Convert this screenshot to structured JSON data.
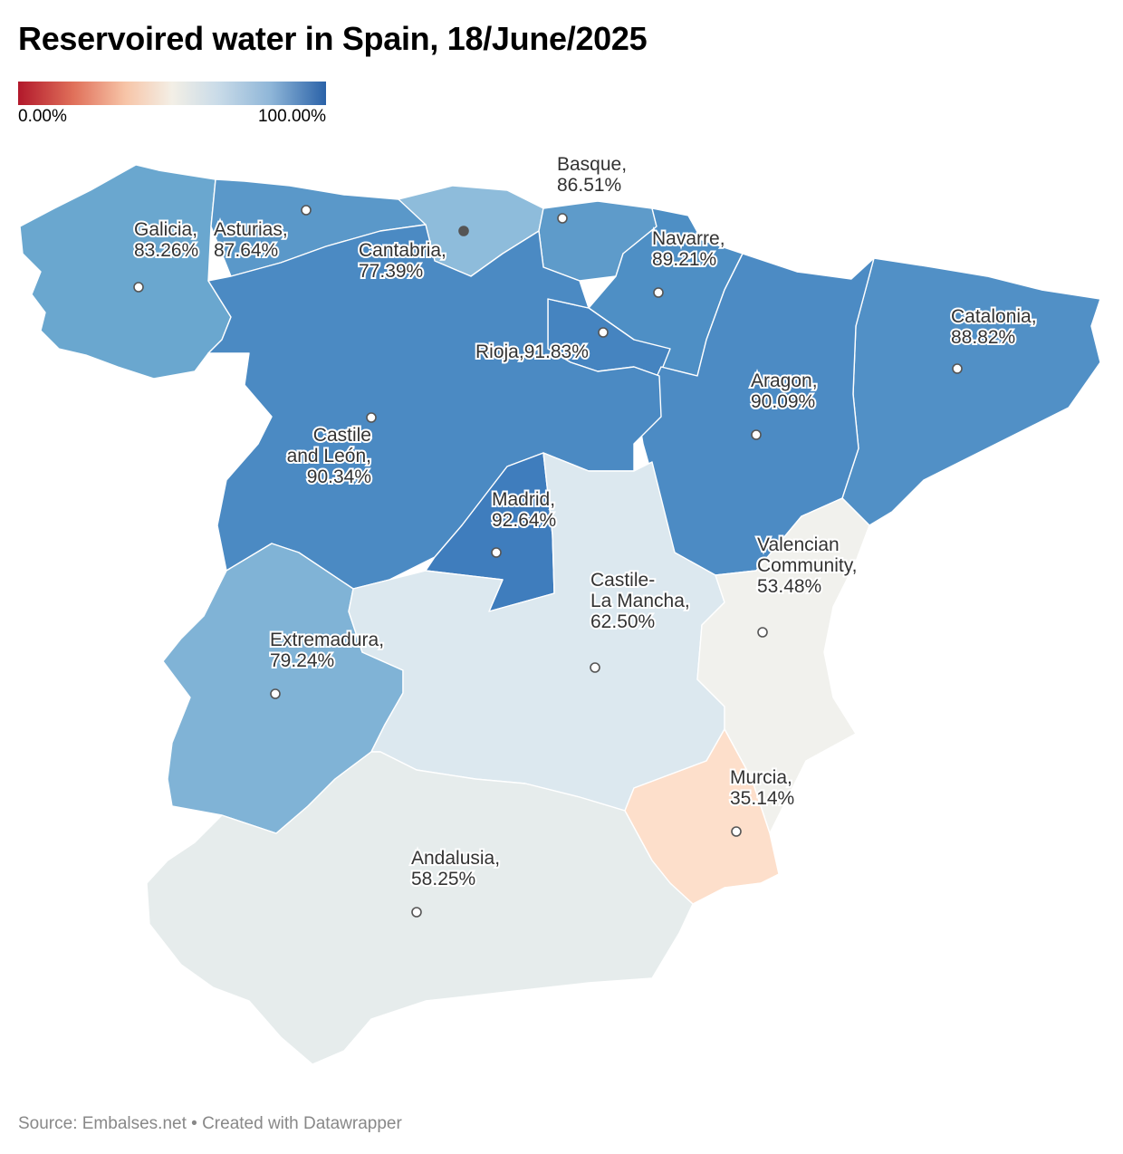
{
  "title": "Reservoired water in Spain, 18/June/2025",
  "legend": {
    "min_label": "0.00%",
    "max_label": "100.00%",
    "colors": [
      "#b2182b",
      "#f3efe6",
      "#2a62a8"
    ]
  },
  "source": "Source: Embalses.net • Created with Datawrapper",
  "regions": [
    {
      "id": "galicia",
      "name": "Galicia",
      "label_lines": [
        "Galicia,",
        "83.26%"
      ],
      "value": 83.26,
      "color": "#6aa7cf"
    },
    {
      "id": "asturias",
      "name": "Asturias",
      "label_lines": [
        "Asturias,",
        "87.64%"
      ],
      "value": 87.64,
      "color": "#5a98c9"
    },
    {
      "id": "cantabria",
      "name": "Cantabria",
      "label_lines": [
        "Cantabria,",
        "77.39%"
      ],
      "value": 77.39,
      "color": "#8ebcdb"
    },
    {
      "id": "basque",
      "name": "Basque",
      "label_lines": [
        "Basque,",
        "86.51%"
      ],
      "value": 86.51,
      "color": "#5e9bca"
    },
    {
      "id": "navarre",
      "name": "Navarre",
      "label_lines": [
        "Navarre,",
        "89.21%"
      ],
      "value": 89.21,
      "color": "#4e8fc5"
    },
    {
      "id": "rioja",
      "name": "Rioja",
      "label_lines": [
        "Rioja,91.83%"
      ],
      "value": 91.83,
      "color": "#4584c0"
    },
    {
      "id": "catalonia",
      "name": "Catalonia",
      "label_lines": [
        "Catalonia,",
        "88.82%"
      ],
      "value": 88.82,
      "color": "#5190c6"
    },
    {
      "id": "aragon",
      "name": "Aragon",
      "label_lines": [
        "Aragon,",
        "90.09%"
      ],
      "value": 90.09,
      "color": "#4c8bc4"
    },
    {
      "id": "castile-leon",
      "name": "Castile and León",
      "label_lines": [
        "Castile",
        "and León,",
        "90.34%"
      ],
      "value": 90.34,
      "color": "#4b8ac3"
    },
    {
      "id": "madrid",
      "name": "Madrid",
      "label_lines": [
        "Madrid,",
        "92.64%"
      ],
      "value": 92.64,
      "color": "#3f7dbd"
    },
    {
      "id": "extremadura",
      "name": "Extremadura",
      "label_lines": [
        "Extremadura,",
        "79.24%"
      ],
      "value": 79.24,
      "color": "#80b3d6"
    },
    {
      "id": "castile-la-mancha",
      "name": "Castile-La Mancha",
      "label_lines": [
        "Castile-",
        "La Mancha,",
        "62.50%"
      ],
      "value": 62.5,
      "color": "#dce8ef"
    },
    {
      "id": "valencian",
      "name": "Valencian Community",
      "label_lines": [
        "Valencian",
        "Community,",
        "53.48%"
      ],
      "value": 53.48,
      "color": "#f1f1ed"
    },
    {
      "id": "murcia",
      "name": "Murcia",
      "label_lines": [
        "Murcia,",
        "35.14%"
      ],
      "value": 35.14,
      "color": "#fddfcb"
    },
    {
      "id": "andalusia",
      "name": "Andalusia",
      "label_lines": [
        "Andalusia,",
        "58.25%"
      ],
      "value": 58.25,
      "color": "#e6ecec"
    }
  ]
}
